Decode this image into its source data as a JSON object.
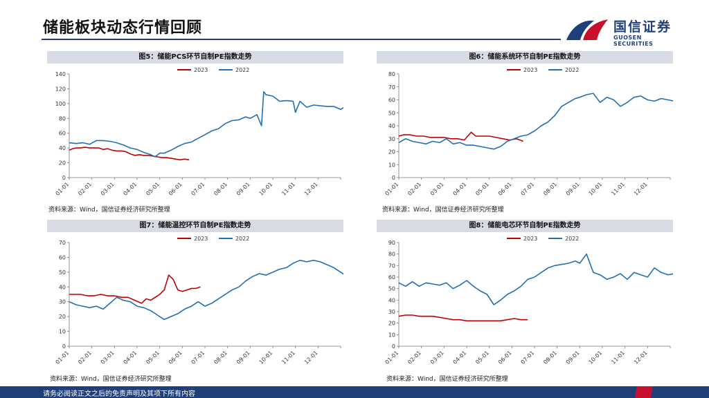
{
  "header": {
    "title": "储能板块动态行情回顾"
  },
  "logo": {
    "cn": "国信证券",
    "en": "GUOSEN SECURITIES"
  },
  "footer": {
    "disclaimer": "请务必阅读正文之后的免责声明及其项下所有内容"
  },
  "colors": {
    "y2023": "#c00000",
    "y2022": "#1f6fb5",
    "brand": "#1f3f7a",
    "accent": "#c8102e"
  },
  "months": [
    "01-01",
    "02-01",
    "03-01",
    "04-01",
    "05-01",
    "06-01",
    "07-01",
    "08-01",
    "09-01",
    "10-01",
    "11-01",
    "12-01"
  ],
  "panels": [
    {
      "heading": "图5：储能PCS环节自制PE指数走势",
      "source": "资料来源：Wind，国信证券经济研究所整理"
    },
    {
      "heading": "图6：储能系统环节自制PE指数走势",
      "source": "资料来源：Wind，国信证券经济研究所整理"
    },
    {
      "heading": "图7：储能温控环节自制PE指数走势",
      "source": "资料来源：Wind，国信证券经济研究所整理"
    },
    {
      "heading": "图8：储能电芯环节自制PE指数走势",
      "source": "资料来源：Wind，国信证券经济研究所整理"
    }
  ],
  "chart_data": [
    {
      "type": "line",
      "ylim": [
        0,
        140
      ],
      "yticks": [
        0,
        20,
        40,
        60,
        80,
        100,
        120,
        140
      ],
      "grid": false,
      "legend": "top-center",
      "series": [
        {
          "name": "2023",
          "color": "#c00000",
          "x": [
            0,
            0.15,
            0.3,
            0.5,
            0.7,
            0.9,
            1.1,
            1.3,
            1.5,
            1.7,
            1.9,
            2.1,
            2.3,
            2.5,
            2.7,
            2.9,
            3.1,
            3.3,
            3.5,
            3.7,
            3.9,
            4.1,
            4.3,
            4.5,
            4.7,
            4.9,
            5.1,
            5.3
          ],
          "y": [
            37,
            39,
            40,
            40,
            41,
            40,
            40,
            40,
            38,
            39,
            37,
            36,
            36,
            35,
            32,
            30,
            31,
            30,
            30,
            29,
            28,
            27,
            27,
            26,
            25,
            24,
            25,
            24
          ]
        },
        {
          "name": "2022",
          "color": "#1f6fb5",
          "x": [
            0,
            0.3,
            0.6,
            0.9,
            1.2,
            1.5,
            1.8,
            2.1,
            2.4,
            2.7,
            3.0,
            3.3,
            3.6,
            3.8,
            4.0,
            4.2,
            4.5,
            4.8,
            5.1,
            5.4,
            5.7,
            6.0,
            6.3,
            6.6,
            6.9,
            7.2,
            7.5,
            7.8,
            8.0,
            8.3,
            8.5,
            8.6,
            8.7,
            9.0,
            9.3,
            9.6,
            9.9,
            10.0,
            10.2,
            10.5,
            10.8,
            11.1,
            11.4,
            11.7,
            12.0,
            12.3,
            12.5,
            12.7,
            12.85
          ],
          "y": [
            47,
            46,
            47,
            45,
            50,
            50,
            49,
            47,
            44,
            40,
            38,
            34,
            31,
            28,
            33,
            33,
            37,
            42,
            46,
            48,
            53,
            58,
            63,
            66,
            73,
            77,
            78,
            82,
            80,
            85,
            70,
            116,
            112,
            110,
            103,
            104,
            103,
            88,
            103,
            95,
            98,
            97,
            96,
            96,
            92,
            98,
            85,
            82,
            93
          ]
        }
      ]
    },
    {
      "type": "line",
      "ylim": [
        0,
        80
      ],
      "yticks": [
        0,
        10,
        20,
        30,
        40,
        50,
        60,
        70,
        80
      ],
      "grid": false,
      "legend": "top-center",
      "series": [
        {
          "name": "2023",
          "color": "#c00000",
          "x": [
            0,
            0.2,
            0.5,
            0.8,
            1.1,
            1.4,
            1.7,
            2.0,
            2.3,
            2.6,
            2.9,
            3.2,
            3.4,
            3.7,
            4.0,
            4.3,
            4.6,
            4.9,
            5.2,
            5.5
          ],
          "y": [
            32,
            33,
            33,
            32,
            32,
            31,
            31,
            31,
            30,
            30,
            29,
            35,
            32,
            32,
            32,
            31,
            30,
            29,
            30,
            28
          ]
        },
        {
          "name": "2022",
          "color": "#1f6fb5",
          "x": [
            0,
            0.3,
            0.6,
            0.9,
            1.2,
            1.5,
            1.8,
            2.1,
            2.4,
            2.7,
            3.0,
            3.3,
            3.6,
            3.9,
            4.2,
            4.5,
            4.8,
            5.1,
            5.4,
            5.7,
            6.0,
            6.3,
            6.6,
            6.9,
            7.2,
            7.5,
            7.8,
            8.0,
            8.3,
            8.6,
            8.9,
            9.2,
            9.5,
            9.8,
            10.1,
            10.4,
            10.7,
            11.0,
            11.3,
            11.6,
            11.9,
            12.2,
            12.5,
            12.8,
            12.9
          ],
          "y": [
            27,
            30,
            28,
            27,
            26,
            28,
            27,
            30,
            26,
            27,
            25,
            25,
            24,
            23,
            22,
            24,
            28,
            30,
            32,
            33,
            36,
            40,
            43,
            48,
            55,
            58,
            61,
            62,
            64,
            65,
            58,
            62,
            60,
            55,
            58,
            62,
            63,
            60,
            59,
            61,
            60,
            59,
            58,
            48,
            57
          ]
        }
      ]
    },
    {
      "type": "line",
      "ylim": [
        0,
        70
      ],
      "yticks": [
        0,
        10,
        20,
        30,
        40,
        50,
        60,
        70
      ],
      "grid": false,
      "legend": "top-center",
      "series": [
        {
          "name": "2023",
          "color": "#c00000",
          "x": [
            0,
            0.2,
            0.5,
            0.8,
            1.1,
            1.4,
            1.7,
            2.0,
            2.3,
            2.6,
            2.9,
            3.2,
            3.4,
            3.6,
            3.8,
            4.0,
            4.2,
            4.4,
            4.6,
            4.8,
            5.0,
            5.2,
            5.4,
            5.6,
            5.8
          ],
          "y": [
            35,
            35,
            35,
            34,
            34,
            35,
            34,
            34,
            33,
            33,
            31,
            29,
            32,
            31,
            33,
            35,
            38,
            48,
            45,
            38,
            37,
            38,
            39,
            39,
            40
          ]
        },
        {
          "name": "2022",
          "color": "#1f6fb5",
          "x": [
            0,
            0.3,
            0.6,
            0.9,
            1.2,
            1.5,
            1.8,
            2.1,
            2.4,
            2.7,
            3.0,
            3.3,
            3.6,
            3.9,
            4.2,
            4.5,
            4.8,
            5.1,
            5.4,
            5.7,
            6.0,
            6.3,
            6.6,
            6.9,
            7.2,
            7.5,
            7.8,
            8.1,
            8.4,
            8.7,
            9.0,
            9.3,
            9.6,
            9.9,
            10.2,
            10.5,
            10.8,
            11.1,
            11.4,
            11.7,
            12.0,
            12.3,
            12.6,
            12.9
          ],
          "y": [
            30,
            28,
            27,
            26,
            27,
            25,
            29,
            33,
            31,
            30,
            27,
            26,
            24,
            21,
            18,
            20,
            22,
            25,
            27,
            30,
            27,
            29,
            32,
            35,
            38,
            40,
            44,
            47,
            49,
            48,
            50,
            52,
            53,
            56,
            58,
            57,
            58,
            57,
            55,
            53,
            50,
            47,
            44,
            49
          ]
        }
      ]
    },
    {
      "type": "line",
      "ylim": [
        0,
        90
      ],
      "yticks": [
        0,
        10,
        20,
        30,
        40,
        50,
        60,
        70,
        80,
        90
      ],
      "grid": false,
      "legend": "top-center",
      "series": [
        {
          "name": "2023",
          "color": "#c00000",
          "x": [
            0,
            0.3,
            0.6,
            0.9,
            1.2,
            1.5,
            1.8,
            2.1,
            2.4,
            2.7,
            3.0,
            3.3,
            3.6,
            3.9,
            4.2,
            4.5,
            4.8,
            5.1,
            5.4,
            5.7
          ],
          "y": [
            26,
            27,
            27,
            26,
            26,
            26,
            25,
            24,
            23,
            23,
            22,
            22,
            22,
            22,
            22,
            22,
            23,
            24,
            23,
            23
          ]
        },
        {
          "name": "2022",
          "color": "#1f6fb5",
          "x": [
            0,
            0.3,
            0.6,
            0.9,
            1.2,
            1.5,
            1.8,
            2.1,
            2.4,
            2.7,
            3.0,
            3.3,
            3.6,
            3.9,
            4.2,
            4.5,
            4.8,
            5.1,
            5.4,
            5.7,
            6.0,
            6.3,
            6.6,
            6.9,
            7.2,
            7.5,
            7.8,
            8.0,
            8.3,
            8.6,
            8.9,
            9.2,
            9.5,
            9.8,
            10.1,
            10.4,
            10.7,
            11.0,
            11.3,
            11.6,
            11.9,
            12.2,
            12.5,
            12.8,
            12.9
          ],
          "y": [
            55,
            52,
            56,
            52,
            55,
            54,
            53,
            55,
            50,
            53,
            57,
            52,
            48,
            45,
            36,
            40,
            45,
            48,
            52,
            58,
            60,
            64,
            68,
            70,
            71,
            72,
            74,
            72,
            80,
            64,
            62,
            58,
            60,
            63,
            58,
            64,
            62,
            60,
            68,
            64,
            62,
            63,
            64,
            61,
            63
          ]
        }
      ]
    }
  ]
}
